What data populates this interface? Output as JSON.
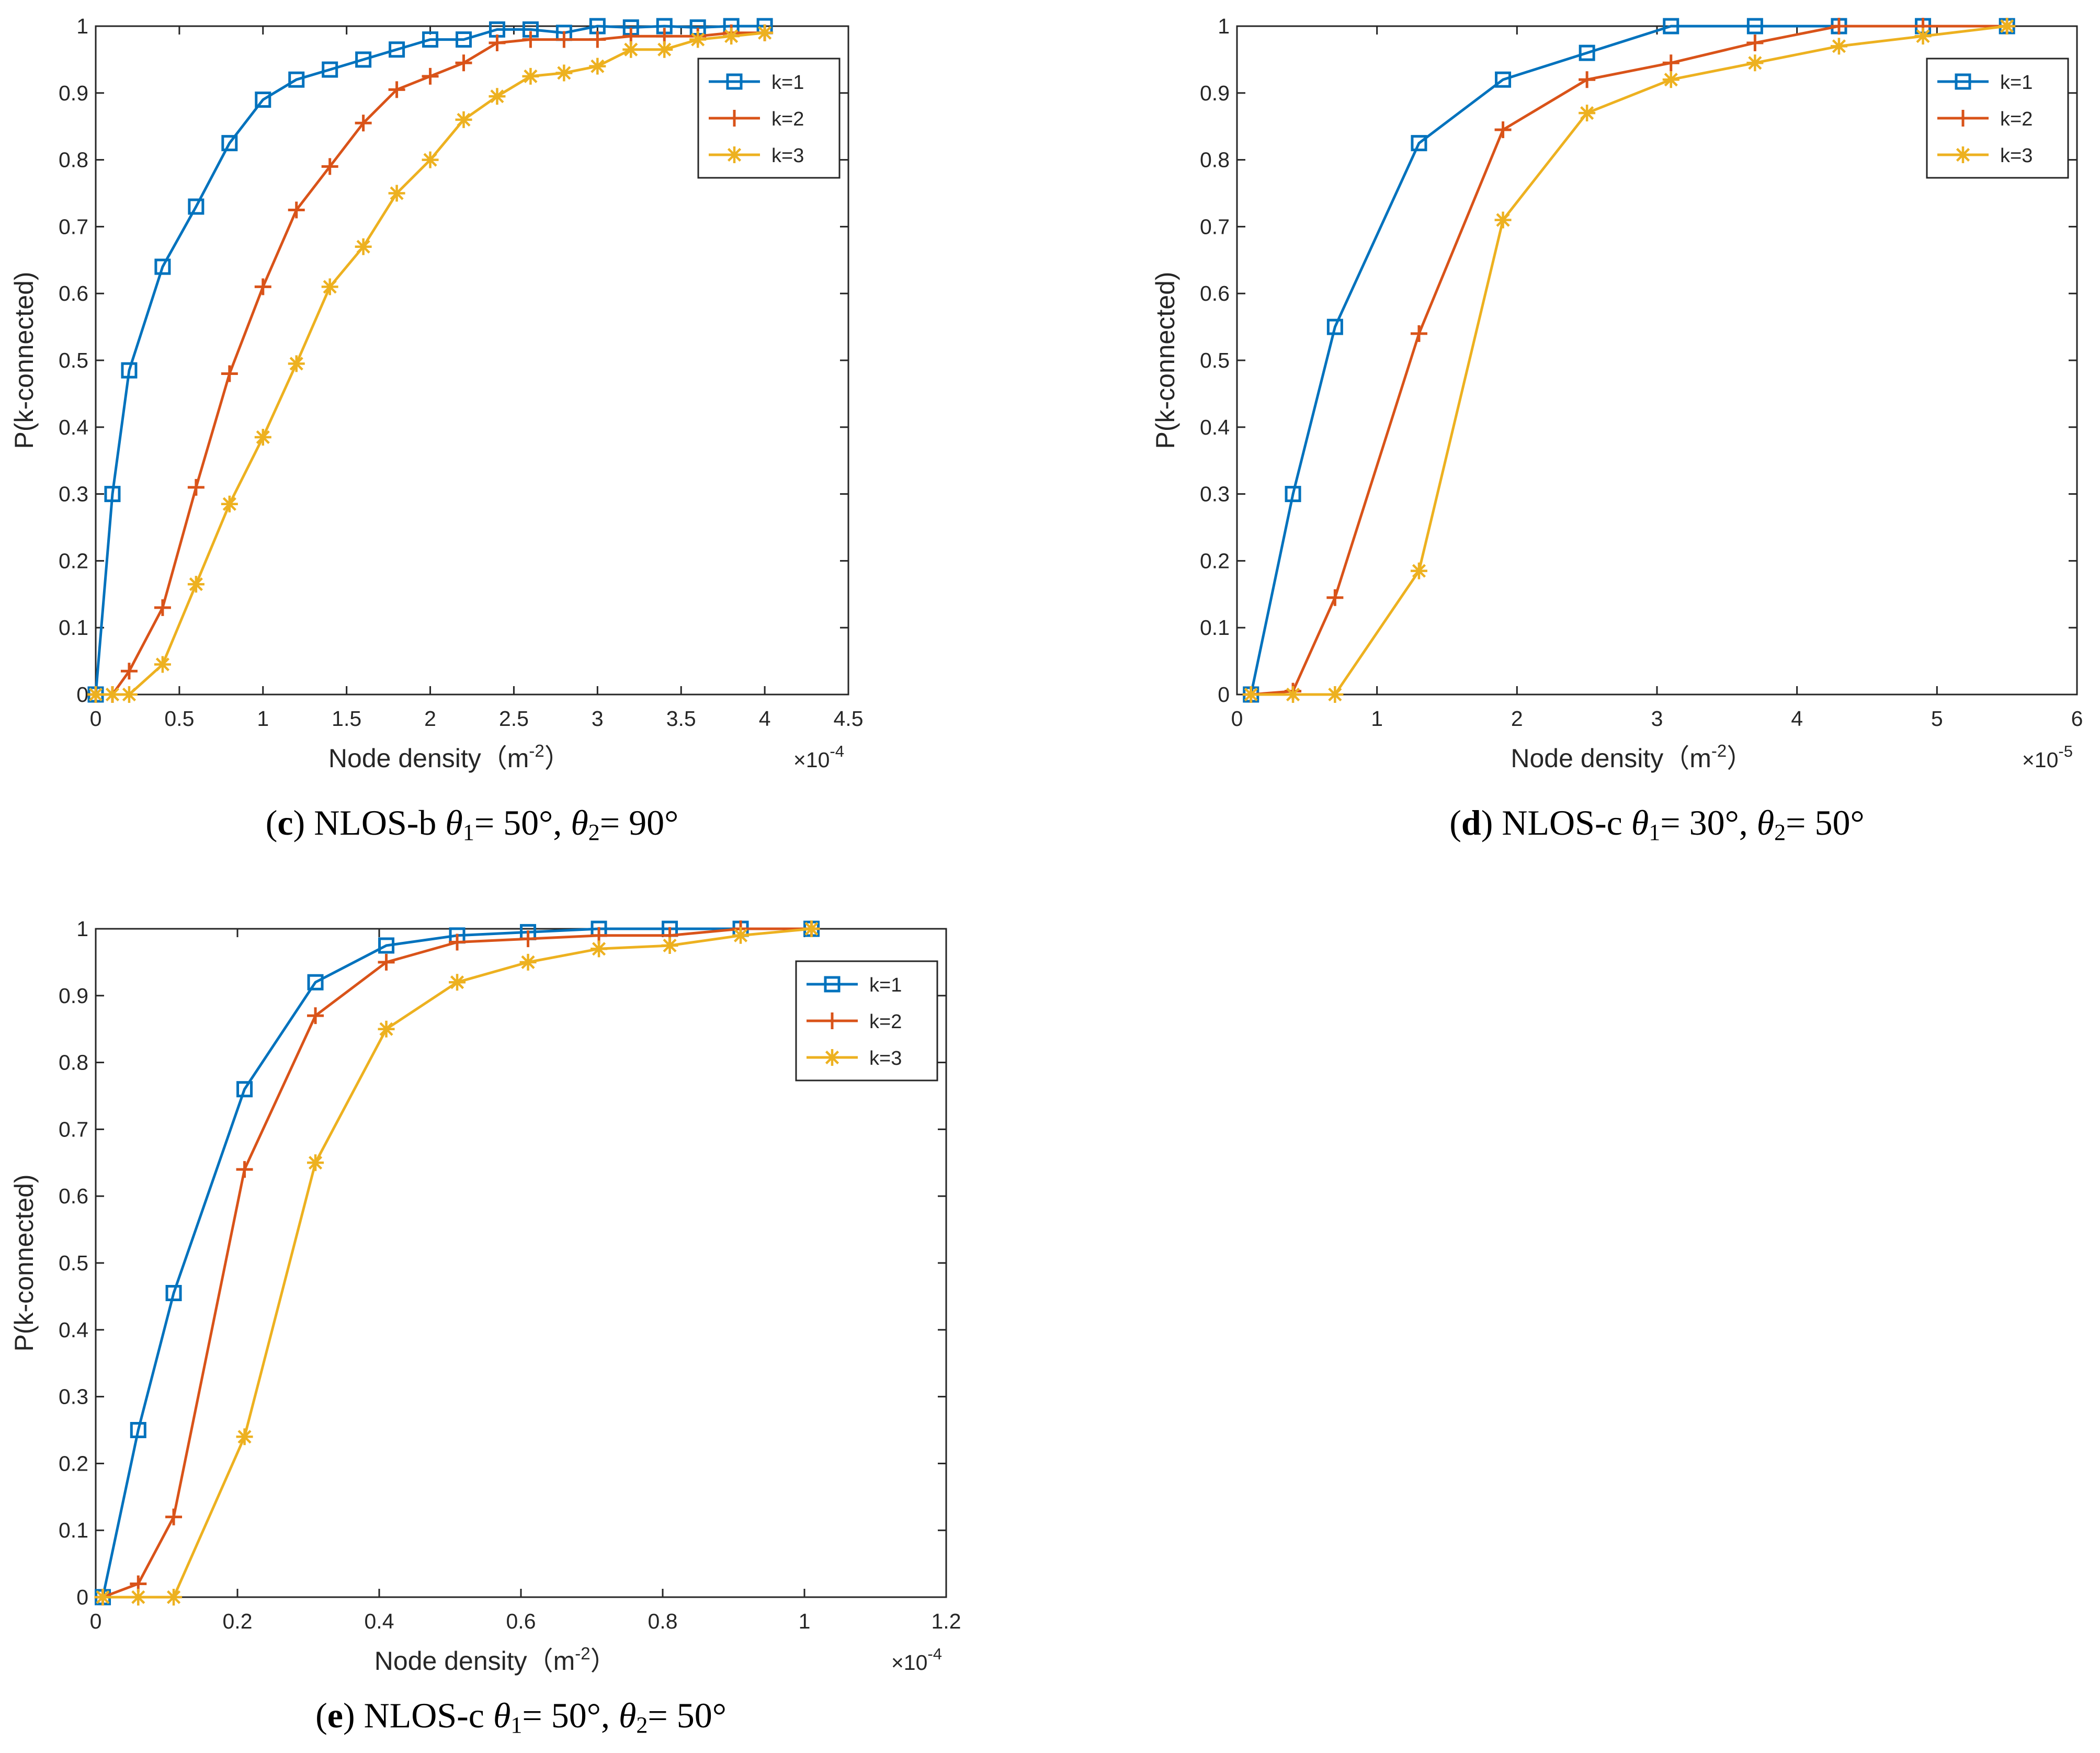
{
  "figure": {
    "panels": [
      "c",
      "d",
      "e"
    ]
  },
  "chart_data": [
    {
      "id": "c",
      "type": "line",
      "caption": {
        "label": "c",
        "prefix": "NLOS-b",
        "theta1": "= 50°,",
        "theta2": "= 90°"
      },
      "xlabel": "Node density（m",
      "xlabel_sup": "-2",
      "xlabel_close": "）",
      "ylabel": "P(k-connected)",
      "xlim": [
        0,
        4.5
      ],
      "ylim": [
        0,
        1
      ],
      "xticks": [
        0,
        0.5,
        1,
        1.5,
        2,
        2.5,
        3,
        3.5,
        4,
        4.5
      ],
      "xtick_labels": [
        "0",
        "0.5",
        "1",
        "1.5",
        "2",
        "2.5",
        "3",
        "3.5",
        "4",
        "4.5"
      ],
      "yticks": [
        0,
        0.1,
        0.2,
        0.3,
        0.4,
        0.5,
        0.6,
        0.7,
        0.8,
        0.9,
        1
      ],
      "ytick_labels": [
        "0",
        "0.1",
        "0.2",
        "0.3",
        "0.4",
        "0.5",
        "0.6",
        "0.7",
        "0.8",
        "0.9",
        "1"
      ],
      "exponent": {
        "base": "×10",
        "power": "-4"
      },
      "legend_position": "top-right",
      "series": [
        {
          "name": "k=1",
          "color": "#0072bd",
          "marker": "square",
          "x": [
            0.0,
            0.1,
            0.2,
            0.4,
            0.6,
            0.8,
            1.0,
            1.2,
            1.4,
            1.6,
            1.8,
            2.0,
            2.2,
            2.4,
            2.6,
            2.8,
            3.0,
            3.2,
            3.4,
            3.6,
            3.8,
            4.0
          ],
          "y": [
            0.0,
            0.3,
            0.485,
            0.64,
            0.73,
            0.825,
            0.89,
            0.92,
            0.935,
            0.95,
            0.965,
            0.98,
            0.98,
            0.995,
            0.995,
            0.99,
            1.0,
            0.998,
            1.0,
            0.998,
            1.0,
            1.0
          ]
        },
        {
          "name": "k=2",
          "color": "#d95319",
          "marker": "plus",
          "x": [
            0.0,
            0.1,
            0.2,
            0.4,
            0.6,
            0.8,
            1.0,
            1.2,
            1.4,
            1.6,
            1.8,
            2.0,
            2.2,
            2.4,
            2.6,
            2.8,
            3.0,
            3.2,
            3.4,
            3.6,
            3.8,
            4.0
          ],
          "y": [
            0.0,
            0.0,
            0.035,
            0.13,
            0.31,
            0.48,
            0.61,
            0.725,
            0.79,
            0.855,
            0.905,
            0.925,
            0.945,
            0.975,
            0.98,
            0.98,
            0.98,
            0.985,
            0.985,
            0.985,
            0.99,
            0.99
          ]
        },
        {
          "name": "k=3",
          "color": "#edb120",
          "marker": "asterisk",
          "x": [
            0.0,
            0.1,
            0.2,
            0.4,
            0.6,
            0.8,
            1.0,
            1.2,
            1.4,
            1.6,
            1.8,
            2.0,
            2.2,
            2.4,
            2.6,
            2.8,
            3.0,
            3.2,
            3.4,
            3.6,
            3.8,
            4.0
          ],
          "y": [
            0.0,
            0.0,
            0.0,
            0.045,
            0.165,
            0.285,
            0.385,
            0.495,
            0.61,
            0.67,
            0.75,
            0.8,
            0.86,
            0.895,
            0.925,
            0.93,
            0.94,
            0.965,
            0.965,
            0.98,
            0.985,
            0.99
          ]
        }
      ]
    },
    {
      "id": "d",
      "type": "line",
      "caption": {
        "label": "d",
        "prefix": "NLOS-c",
        "theta1": "= 30°,",
        "theta2": "= 50°"
      },
      "xlabel": "Node density（m",
      "xlabel_sup": "-2",
      "xlabel_close": "）",
      "ylabel": "P(k-connected)",
      "xlim": [
        0,
        6
      ],
      "ylim": [
        0,
        1
      ],
      "xticks": [
        0,
        1,
        2,
        3,
        4,
        5,
        6
      ],
      "xtick_labels": [
        "0",
        "1",
        "2",
        "3",
        "4",
        "5",
        "6"
      ],
      "yticks": [
        0,
        0.1,
        0.2,
        0.3,
        0.4,
        0.5,
        0.6,
        0.7,
        0.8,
        0.9,
        1
      ],
      "ytick_labels": [
        "0",
        "0.1",
        "0.2",
        "0.3",
        "0.4",
        "0.5",
        "0.6",
        "0.7",
        "0.8",
        "0.9",
        "1"
      ],
      "exponent": {
        "base": "×10",
        "power": "-5"
      },
      "legend_position": "top-right",
      "series": [
        {
          "name": "k=1",
          "color": "#0072bd",
          "marker": "square",
          "x": [
            0.1,
            0.4,
            0.7,
            1.3,
            1.9,
            2.5,
            3.1,
            3.7,
            4.3,
            4.9,
            5.5
          ],
          "y": [
            0.0,
            0.3,
            0.55,
            0.825,
            0.92,
            0.96,
            1.0,
            1.0,
            1.0,
            1.0,
            1.0
          ]
        },
        {
          "name": "k=2",
          "color": "#d95319",
          "marker": "plus",
          "x": [
            0.1,
            0.4,
            0.7,
            1.3,
            1.9,
            2.5,
            3.1,
            3.7,
            4.3,
            4.9,
            5.5
          ],
          "y": [
            0.0,
            0.005,
            0.145,
            0.54,
            0.845,
            0.92,
            0.945,
            0.975,
            1.0,
            1.0,
            1.0
          ]
        },
        {
          "name": "k=3",
          "color": "#edb120",
          "marker": "asterisk",
          "x": [
            0.1,
            0.4,
            0.7,
            1.3,
            1.9,
            2.5,
            3.1,
            3.7,
            4.3,
            4.9,
            5.5
          ],
          "y": [
            0.0,
            0.0,
            0.0,
            0.185,
            0.71,
            0.87,
            0.92,
            0.945,
            0.97,
            0.985,
            1.0
          ]
        }
      ]
    },
    {
      "id": "e",
      "type": "line",
      "caption": {
        "label": "e",
        "prefix": "NLOS-c",
        "theta1": "= 50°,",
        "theta2": "= 50°"
      },
      "xlabel": "Node density（m",
      "xlabel_sup": "-2",
      "xlabel_close": "）",
      "ylabel": "P(k-connected)",
      "xlim": [
        0,
        1.2
      ],
      "ylim": [
        0,
        1
      ],
      "xticks": [
        0,
        0.2,
        0.4,
        0.6,
        0.8,
        1,
        1.2
      ],
      "xtick_labels": [
        "0",
        "0.2",
        "0.4",
        "0.6",
        "0.8",
        "1",
        "1.2"
      ],
      "yticks": [
        0,
        0.1,
        0.2,
        0.3,
        0.4,
        0.5,
        0.6,
        0.7,
        0.8,
        0.9,
        1
      ],
      "ytick_labels": [
        "0",
        "0.1",
        "0.2",
        "0.3",
        "0.4",
        "0.5",
        "0.6",
        "0.7",
        "0.8",
        "0.9",
        "1"
      ],
      "exponent": {
        "base": "×10",
        "power": "-4"
      },
      "legend_position": "top-right",
      "series": [
        {
          "name": "k=1",
          "color": "#0072bd",
          "marker": "square",
          "x": [
            0.01,
            0.06,
            0.11,
            0.21,
            0.31,
            0.41,
            0.51,
            0.61,
            0.71,
            0.81,
            0.91,
            1.01
          ],
          "y": [
            0.0,
            0.25,
            0.455,
            0.76,
            0.92,
            0.975,
            0.99,
            0.995,
            1.0,
            1.0,
            1.0,
            1.0
          ]
        },
        {
          "name": "k=2",
          "color": "#d95319",
          "marker": "plus",
          "x": [
            0.01,
            0.06,
            0.11,
            0.21,
            0.31,
            0.41,
            0.51,
            0.61,
            0.71,
            0.81,
            0.91,
            1.01
          ],
          "y": [
            0.0,
            0.02,
            0.12,
            0.64,
            0.87,
            0.95,
            0.98,
            0.985,
            0.99,
            0.99,
            1.0,
            1.0
          ]
        },
        {
          "name": "k=3",
          "color": "#edb120",
          "marker": "asterisk",
          "x": [
            0.01,
            0.06,
            0.11,
            0.21,
            0.31,
            0.41,
            0.51,
            0.61,
            0.71,
            0.81,
            0.91,
            1.01
          ],
          "y": [
            0.0,
            0.0,
            0.0,
            0.24,
            0.65,
            0.85,
            0.92,
            0.95,
            0.97,
            0.975,
            0.99,
            1.0
          ]
        }
      ]
    }
  ]
}
